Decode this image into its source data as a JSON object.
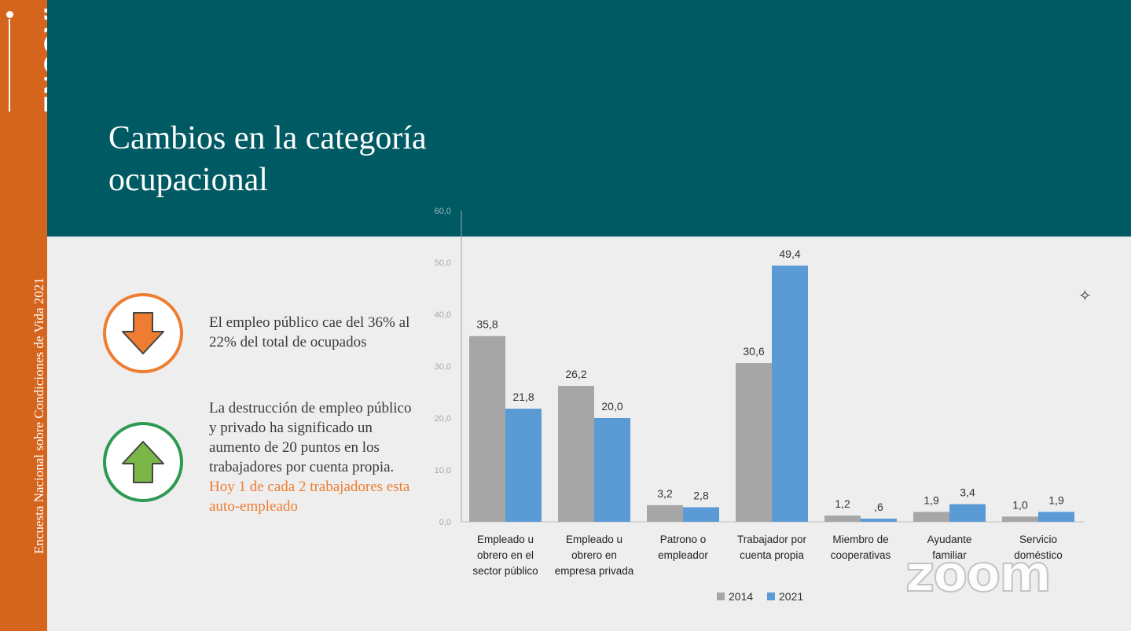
{
  "sidebar": {
    "logo": "ENCOVI",
    "caption": "Encuesta Nacional sobre Condiciones de Vida 2021"
  },
  "slide": {
    "title": "Cambios en la categoría ocupacional",
    "note1": "El empleo público cae del 36% al 22% del total de ocupados",
    "note2_main": "La destrucción de empleo público y privado ha significado un aumento de 20 puntos en los trabajadores por cuenta propia.",
    "note2_highlight": "Hoy 1 de cada 2 trabajadores esta auto-empleado"
  },
  "icons": {
    "down": "down-arrow-icon",
    "up": "up-arrow-icon",
    "star": "sparkle-icon"
  },
  "colors": {
    "sidebar": "#d5641d",
    "header": "#005a63",
    "series_2014": "#a6a6a6",
    "series_2021": "#5b9bd5",
    "down_arrow": "#ef7d31",
    "up_arrow": "#7ab648"
  },
  "overlay": {
    "zoom_watermark": "zoom"
  },
  "chart_data": {
    "type": "bar",
    "categories": [
      [
        "Empleado u",
        "obrero en el",
        "sector público"
      ],
      [
        "Empleado u",
        "obrero en",
        "empresa privada"
      ],
      [
        "Patrono o",
        "empleador"
      ],
      [
        "Trabajador por",
        "cuenta propia"
      ],
      [
        "Miembro de",
        "cooperativas"
      ],
      [
        "Ayudante",
        "familiar"
      ],
      [
        "Servicio",
        "doméstico"
      ]
    ],
    "series": [
      {
        "name": "2014",
        "values": [
          35.8,
          26.2,
          3.2,
          30.6,
          1.2,
          1.9,
          1.0
        ],
        "labels": [
          "35,8",
          "26,2",
          "3,2",
          "30,6",
          "1,2",
          "1,9",
          "1,0"
        ]
      },
      {
        "name": "2021",
        "values": [
          21.8,
          20.0,
          2.8,
          49.4,
          0.6,
          3.4,
          1.9
        ],
        "labels": [
          "21,8",
          "20,0",
          "2,8",
          "49,4",
          ",6",
          "3,4",
          "1,9"
        ]
      }
    ],
    "yticks": [
      "0,0",
      "10,0",
      "20,0",
      "30,0",
      "40,0",
      "50,0",
      "60,0"
    ],
    "ylim": [
      0,
      60
    ],
    "legend_position": "bottom"
  }
}
